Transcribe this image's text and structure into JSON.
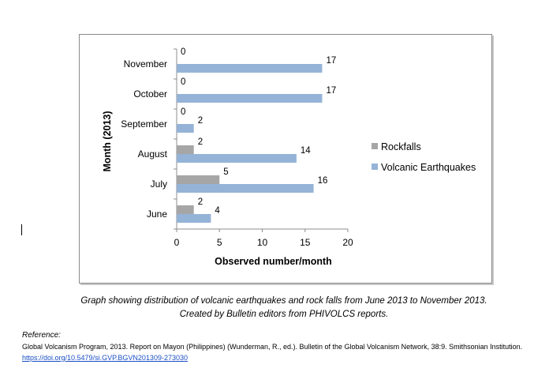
{
  "chart_data": {
    "type": "bar",
    "orientation": "horizontal",
    "categories": [
      "June",
      "July",
      "August",
      "September",
      "October",
      "November"
    ],
    "series": [
      {
        "name": "Rockfalls",
        "values": [
          2,
          5,
          2,
          0,
          0,
          0
        ],
        "color": "#a6a6a6"
      },
      {
        "name": "Volcanic Earthquakes",
        "values": [
          4,
          16,
          14,
          2,
          17,
          17
        ],
        "color": "#95b3d7"
      }
    ],
    "xlabel": "Observed number/month",
    "ylabel": "Month (2013)",
    "xlim": [
      0,
      20
    ],
    "xticks": [
      "0",
      "5",
      "10",
      "15",
      "20"
    ],
    "grid": false,
    "legend_position": "right"
  },
  "caption": {
    "line1": "Graph showing distribution of volcanic earthquakes and rock falls from June 2013 to November 2013.",
    "line2": "Created by Bulletin editors from PHIVOLCS reports."
  },
  "reference": {
    "label": "Reference:",
    "text": "Global Volcanism Program, 2013. Report on Mayon (Philippines) (Wunderman, R., ed.). Bulletin of the Global Volcanism Network, 38:9. Smithsonian Institution.",
    "link": "https://doi.org/10.5479/si.GVP.BGVN201309-273030"
  }
}
